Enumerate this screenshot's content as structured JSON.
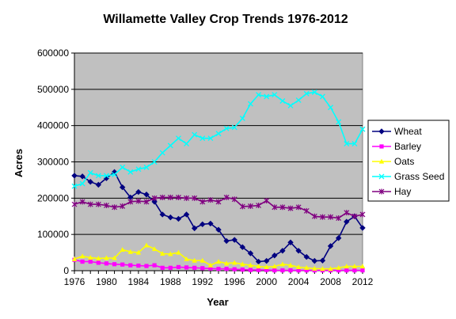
{
  "chart_data": {
    "type": "line",
    "title": "Willamette Valley Crop Trends 1976-2012",
    "xlabel": "Year",
    "ylabel": "Acres",
    "xlim": [
      1976,
      2012
    ],
    "ylim": [
      0,
      600000
    ],
    "x_ticks": [
      "1976",
      "1980",
      "1984",
      "1988",
      "1992",
      "1996",
      "2000",
      "2004",
      "2008",
      "2012"
    ],
    "y_ticks": [
      "0",
      "100000",
      "200000",
      "300000",
      "400000",
      "500000",
      "600000"
    ],
    "grid": "horizontal",
    "legend_position": "right",
    "x": [
      1976,
      1977,
      1978,
      1979,
      1980,
      1981,
      1982,
      1983,
      1984,
      1985,
      1986,
      1987,
      1988,
      1989,
      1990,
      1991,
      1992,
      1993,
      1994,
      1995,
      1996,
      1997,
      1998,
      1999,
      2000,
      2001,
      2002,
      2003,
      2004,
      2005,
      2006,
      2007,
      2008,
      2009,
      2010,
      2011,
      2012
    ],
    "series": [
      {
        "name": "Wheat",
        "color": "#000080",
        "marker": "diamond",
        "values": [
          262000,
          260000,
          245000,
          237000,
          255000,
          272000,
          230000,
          202000,
          217000,
          210000,
          190000,
          155000,
          147000,
          143000,
          155000,
          117000,
          128000,
          130000,
          113000,
          82000,
          85000,
          65000,
          48000,
          25000,
          27000,
          42000,
          55000,
          78000,
          55000,
          38000,
          27000,
          28000,
          68000,
          90000,
          135000,
          150000,
          118000
        ]
      },
      {
        "name": "Barley",
        "color": "#ff00ff",
        "marker": "square",
        "values": [
          30000,
          25000,
          25000,
          22000,
          20000,
          18000,
          17000,
          15000,
          14000,
          13000,
          15000,
          8000,
          8000,
          10000,
          9000,
          8000,
          7000,
          6000,
          5000,
          5000,
          4000,
          3000,
          2000,
          2000,
          2000,
          1000,
          1000,
          1000,
          1000,
          1000,
          1000,
          1000,
          1000,
          1000,
          1000,
          1000,
          1000
        ]
      },
      {
        "name": "Oats",
        "color": "#ffff00",
        "marker": "triangle",
        "values": [
          32000,
          40000,
          36000,
          34000,
          35000,
          35000,
          58000,
          52000,
          50000,
          70000,
          60000,
          47000,
          46000,
          50000,
          32000,
          28000,
          28000,
          15000,
          25000,
          20000,
          22000,
          18000,
          15000,
          12000,
          10000,
          12000,
          18000,
          15000,
          10000,
          8000,
          6000,
          5000,
          5000,
          8000,
          12000,
          12000,
          12000
        ]
      },
      {
        "name": "Grass Seed",
        "color": "#00ffff",
        "marker": "x",
        "values": [
          233000,
          240000,
          270000,
          262000,
          262000,
          265000,
          285000,
          272000,
          280000,
          285000,
          300000,
          325000,
          345000,
          365000,
          350000,
          375000,
          365000,
          365000,
          378000,
          392000,
          395000,
          420000,
          460000,
          485000,
          480000,
          485000,
          468000,
          455000,
          470000,
          488000,
          492000,
          480000,
          450000,
          410000,
          350000,
          350000,
          390000
        ]
      },
      {
        "name": "Hay",
        "color": "#800080",
        "marker": "star",
        "values": [
          183000,
          190000,
          183000,
          183000,
          180000,
          175000,
          178000,
          190000,
          192000,
          190000,
          200000,
          202000,
          202000,
          202000,
          200000,
          200000,
          190000,
          195000,
          190000,
          202000,
          197000,
          177000,
          178000,
          180000,
          193000,
          175000,
          175000,
          172000,
          175000,
          165000,
          150000,
          148000,
          148000,
          145000,
          160000,
          150000,
          155000
        ]
      }
    ]
  }
}
